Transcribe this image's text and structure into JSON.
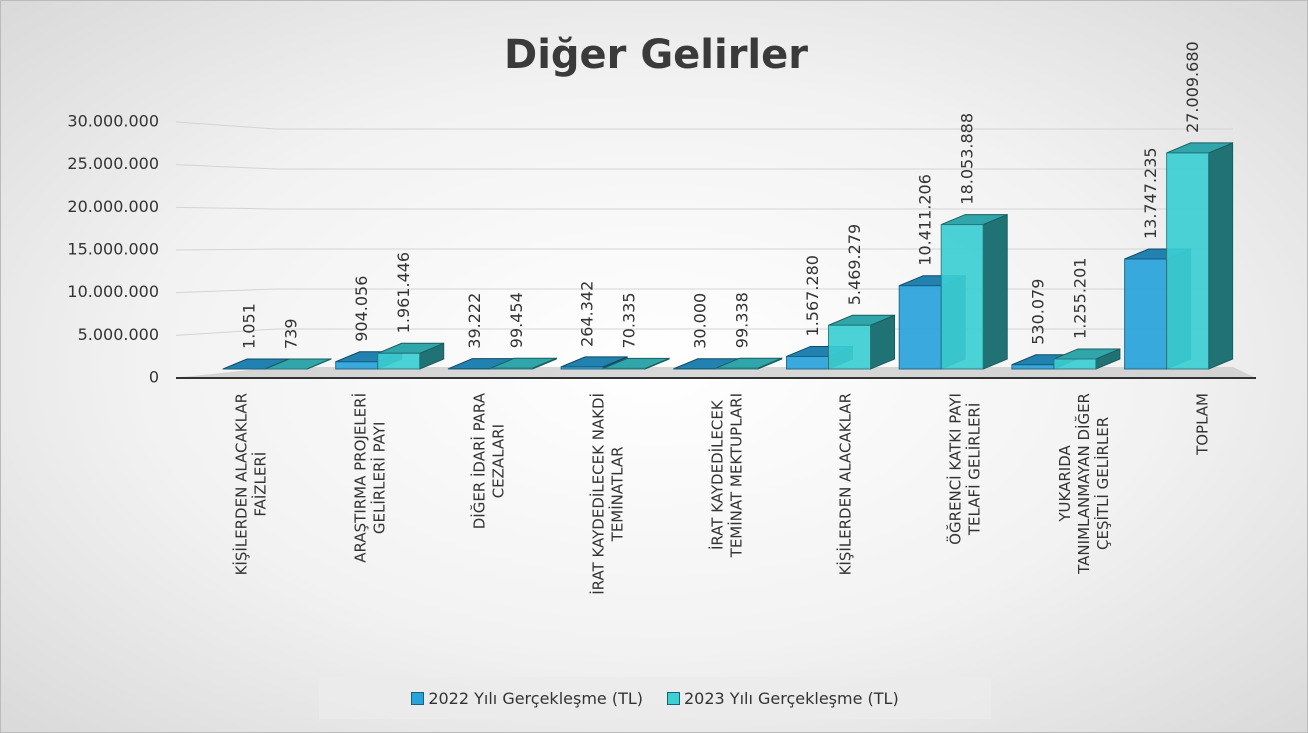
{
  "chart_data": {
    "type": "bar3d",
    "title": "Diğer Gelirler",
    "categories": [
      "KİŞİLERDEN ALACAKLAR\nFAİZLERİ",
      "ARAŞTIRMA PROJELERİ\nGELİRLERİ PAYI",
      "DİĞER İDARİ PARA\nCEZALARI",
      "İRAT KAYDEDİLECEK NAKDİ\nTEMİNATLAR",
      "İRAT KAYDEDİLECEK\nTEMİNAT MEKTUPLARI",
      "KİŞİLERDEN ALACAKLAR",
      "ÖĞRENCİ KATKI PAYI\nTELAFİ GELİRLERİ",
      "YUKARIDA\nTANIMLANMAYAN DİĞER\nÇEŞİTLİ GELİRLER",
      "TOPLAM"
    ],
    "series": [
      {
        "name": "2022 Yılı Gerçekleşme (TL)",
        "color": "#29a3dc",
        "values": [
          1051,
          904056,
          39222,
          264342,
          30000,
          1567280,
          10411206,
          530079,
          13747235
        ],
        "value_labels": [
          "1.051",
          "904.056",
          "39.222",
          "264.342",
          "30.000",
          "1.567.280",
          "10.411.206",
          "530.079",
          "13.747.235"
        ]
      },
      {
        "name": "2023 Yılı Gerçekleşme (TL)",
        "color": "#3ccfd4",
        "values": [
          739,
          1961446,
          99454,
          70335,
          99338,
          5469279,
          18053888,
          1255201,
          27009680
        ],
        "value_labels": [
          "739",
          "1.961.446",
          "99.454",
          "70.335",
          "99.338",
          "5.469.279",
          "18.053.888",
          "1.255.201",
          "27.009.680"
        ]
      }
    ],
    "ylim": [
      0,
      30000000
    ],
    "yticks": [
      0,
      {
        "value": 5000000,
        "label": "5.000.000"
      },
      {
        "value": 10000000,
        "label": "10.000.000"
      },
      {
        "value": 15000000,
        "label": "15.000.000"
      },
      {
        "value": 20000000,
        "label": "20.000.000"
      },
      {
        "value": 25000000,
        "label": "25.000.000"
      },
      {
        "value": 30000000,
        "label": "30.000.000"
      }
    ],
    "grid": true,
    "legend": "bottom"
  }
}
